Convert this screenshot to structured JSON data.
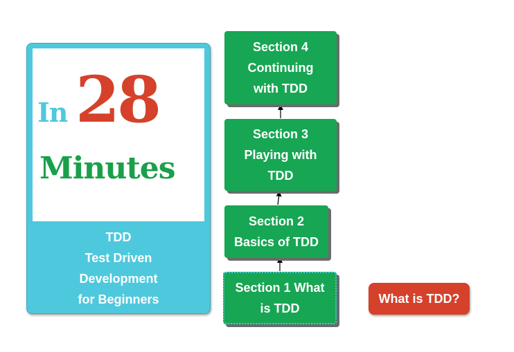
{
  "card": {
    "logo": {
      "prefix": "In",
      "number": "28",
      "word": "Minutes"
    },
    "lines": [
      "TDD",
      "Test Driven",
      "Development",
      "for Beginners"
    ]
  },
  "sections": [
    {
      "id": "s4",
      "lines": [
        "Section 4",
        "Continuing",
        "with TDD"
      ]
    },
    {
      "id": "s3",
      "lines": [
        "Section 3",
        "Playing with",
        "TDD"
      ]
    },
    {
      "id": "s2",
      "lines": [
        "Section 2",
        "Basics of TDD"
      ]
    },
    {
      "id": "s1",
      "lines": [
        "Section 1 What",
        "is TDD"
      ]
    }
  ],
  "note": {
    "label": "What is TDD?"
  },
  "colors": {
    "card": "#4ec8dc",
    "logo_number": "#d5412b",
    "logo_word": "#1aa04a",
    "section": "#17a653",
    "note": "#d5412b"
  }
}
